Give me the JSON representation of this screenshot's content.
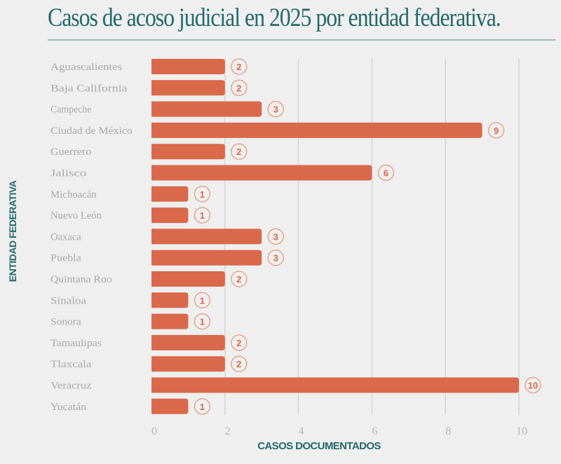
{
  "chart_data": {
    "type": "bar",
    "orientation": "horizontal",
    "title": "Casos de acoso judicial en 2025 por entidad federativa.",
    "xlabel": "CASOS DOCUMENTADOS",
    "ylabel": "ENTIDAD FEDERATIVA",
    "categories": [
      "Aguascalientes",
      "Baja California",
      "Campeche",
      "Ciudad de México",
      "Guerrero",
      "Jalisco",
      "Michoacán",
      "Nuevo León",
      "Oaxaca",
      "Puebla",
      "Quintana Roo",
      "Sinaloa",
      "Sonora",
      "Tamaulipas",
      "Tlaxcala",
      "Veracruz",
      "Yucatán"
    ],
    "values": [
      2,
      2,
      3,
      9,
      2,
      6,
      1,
      1,
      3,
      3,
      2,
      1,
      1,
      2,
      2,
      10,
      1
    ],
    "xlim": [
      0,
      10
    ],
    "xticks": [
      "0",
      "2",
      "4",
      "6",
      "8",
      "10"
    ],
    "grid": "vertical",
    "data_labels": true,
    "colors": {
      "bar": "#d9694a",
      "title": "#24696a",
      "background": "#efefef"
    }
  }
}
